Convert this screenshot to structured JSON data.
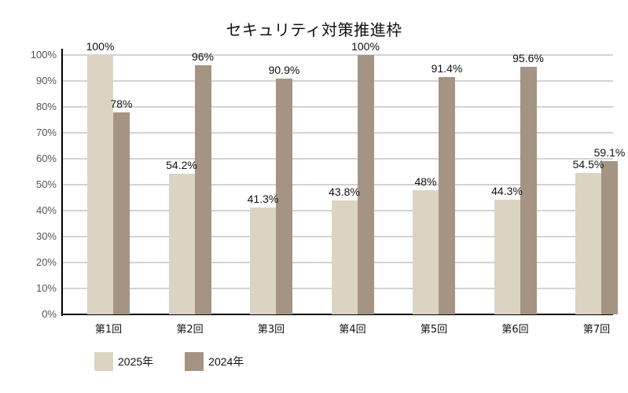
{
  "chart_data": {
    "type": "bar",
    "title": "セキュリティ対策推進枠",
    "xlabel": "",
    "ylabel": "",
    "ylim": [
      0,
      100
    ],
    "yticks": [
      "0%",
      "10%",
      "20%",
      "30%",
      "40%",
      "50%",
      "60%",
      "70%",
      "80%",
      "90%",
      "100%"
    ],
    "grid": true,
    "legend_position": "bottom-left",
    "categories": [
      "第1回",
      "第2回",
      "第3回",
      "第4回",
      "第5回",
      "第6回",
      "第7回"
    ],
    "series": [
      {
        "name": "2025年",
        "color": "#dbd4c3",
        "values": [
          100,
          54.2,
          41.3,
          43.8,
          48,
          44.3,
          54.5
        ],
        "labels": [
          "100%",
          "54.2%",
          "41.3%",
          "43.8%",
          "48%",
          "44.3%",
          "54.5%"
        ]
      },
      {
        "name": "2024年",
        "color": "#a59484",
        "values": [
          78,
          96,
          90.9,
          100,
          91.4,
          95.6,
          59.1
        ],
        "labels": [
          "78%",
          "96%",
          "90.9%",
          "100%",
          "91.4%",
          "95.6%",
          "59.1%"
        ]
      }
    ]
  }
}
